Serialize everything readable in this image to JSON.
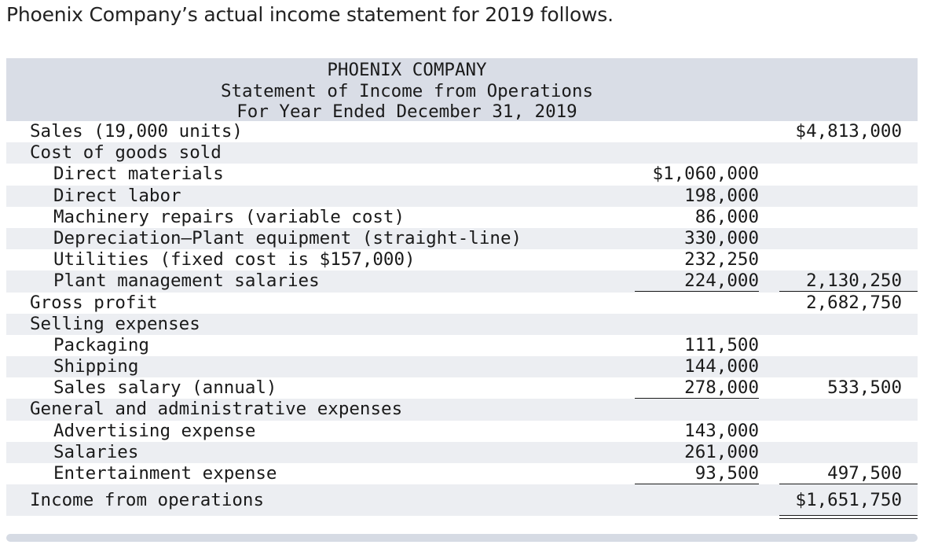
{
  "intro_text": "Phoenix Company’s actual income statement for 2019 follows.",
  "statement": {
    "company": "PHOENIX COMPANY",
    "title": "Statement of Income from Operations",
    "period": "For Year Ended December 31, 2019",
    "rows": [
      {
        "label": "Sales (19,000 units)",
        "indent": 0,
        "col1": "",
        "col2": "$4,813,000"
      },
      {
        "label": "Cost of goods sold",
        "indent": 0,
        "col1": "",
        "col2": ""
      },
      {
        "label": "Direct materials",
        "indent": 1,
        "col1": "$1,060,000",
        "col2": ""
      },
      {
        "label": "Direct labor",
        "indent": 1,
        "col1": "198,000",
        "col2": ""
      },
      {
        "label": "Machinery repairs (variable cost)",
        "indent": 1,
        "col1": "86,000",
        "col2": ""
      },
      {
        "label": "Depreciation—Plant equipment (straight-line)",
        "indent": 1,
        "col1": "330,000",
        "col2": ""
      },
      {
        "label": "Utilities (fixed cost is $157,000)",
        "indent": 1,
        "col1": "232,250",
        "col2": ""
      },
      {
        "label": "Plant management salaries",
        "indent": 1,
        "col1": "224,000",
        "col2": "2,130,250"
      },
      {
        "label": "Gross profit",
        "indent": 0,
        "col1": "",
        "col2": "2,682,750"
      },
      {
        "label": "Selling expenses",
        "indent": 0,
        "col1": "",
        "col2": ""
      },
      {
        "label": "Packaging",
        "indent": 1,
        "col1": "111,500",
        "col2": ""
      },
      {
        "label": "Shipping",
        "indent": 1,
        "col1": "144,000",
        "col2": ""
      },
      {
        "label": "Sales salary (annual)",
        "indent": 1,
        "col1": "278,000",
        "col2": "533,500"
      },
      {
        "label": "General and administrative expenses",
        "indent": 0,
        "col1": "",
        "col2": ""
      },
      {
        "label": "Advertising expense",
        "indent": 1,
        "col1": "143,000",
        "col2": ""
      },
      {
        "label": "Salaries",
        "indent": 1,
        "col1": "261,000",
        "col2": ""
      },
      {
        "label": "Entertainment expense",
        "indent": 1,
        "col1": "93,500",
        "col2": "497,500"
      },
      {
        "label": "Income from operations",
        "indent": 0,
        "col1": "",
        "col2": "$1,651,750"
      }
    ]
  }
}
